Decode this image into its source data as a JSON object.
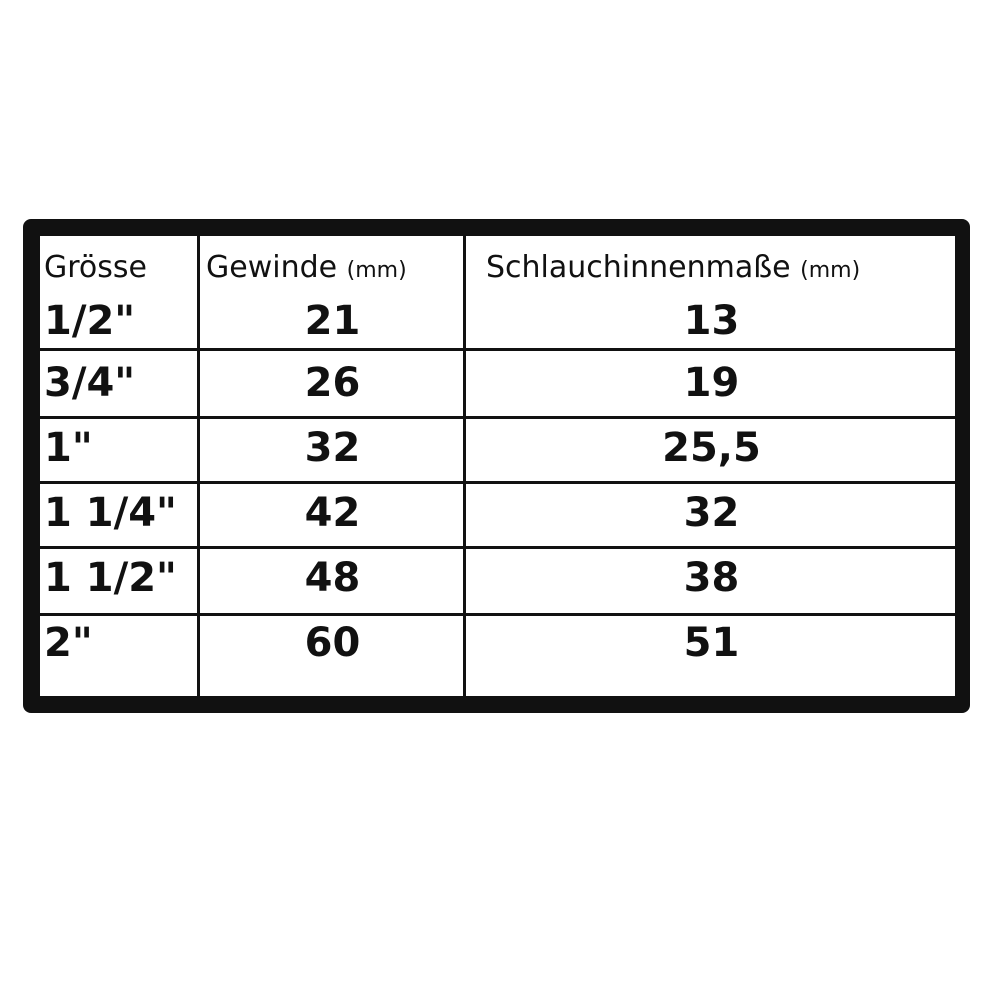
{
  "table": {
    "headers": [
      {
        "label": "Grösse",
        "unit": ""
      },
      {
        "label": "Gewinde",
        "unit": "(mm)"
      },
      {
        "label": "Schlauchinnenmaße",
        "unit": "(mm)"
      }
    ],
    "rows": [
      {
        "size": "1/2\"",
        "thread": "21",
        "hose": "13"
      },
      {
        "size": "3/4\"",
        "thread": "26",
        "hose": "19"
      },
      {
        "size": "1\"",
        "thread": "32",
        "hose": "25,5"
      },
      {
        "size": "1 1/4\"",
        "thread": "42",
        "hose": "32"
      },
      {
        "size": "1 1/2\"",
        "thread": "48",
        "hose": "38"
      },
      {
        "size": "2\"",
        "thread": "60",
        "hose": "51"
      }
    ]
  }
}
